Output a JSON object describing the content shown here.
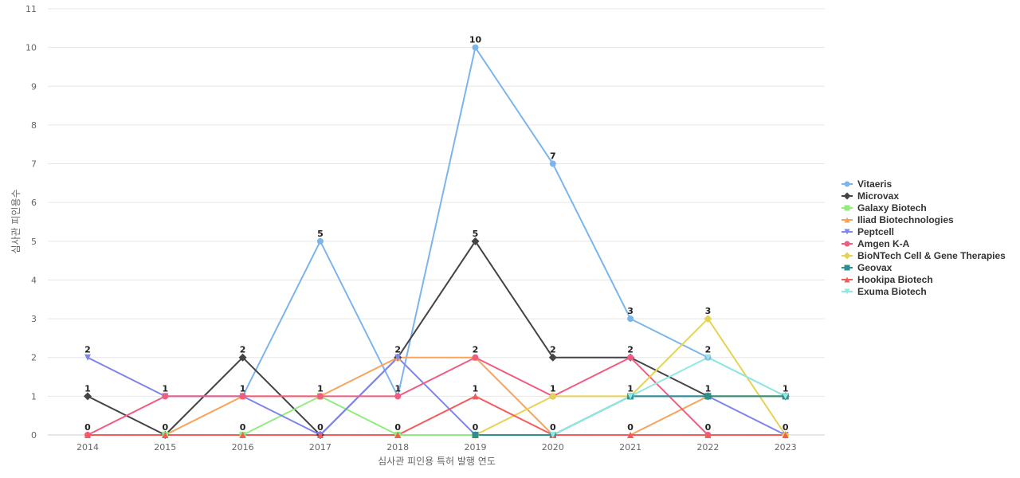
{
  "chart_data": {
    "type": "line",
    "xlabel": "심사관 피인용 특허 발행 연도",
    "ylabel": "심사관 피인용수",
    "ylim": [
      0,
      11
    ],
    "yticks": [
      0,
      1,
      2,
      3,
      4,
      5,
      6,
      7,
      8,
      9,
      10,
      11
    ],
    "x": [
      "2014",
      "2015",
      "2016",
      "2017",
      "2018",
      "2019",
      "2020",
      "2021",
      "2022",
      "2023"
    ],
    "grid": true,
    "legend_position": "right",
    "series": [
      {
        "name": "Vitaeris",
        "color": "#7cb5ec",
        "marker": "circle",
        "values": [
          null,
          1,
          1,
          5,
          1,
          10,
          7,
          3,
          2,
          1
        ]
      },
      {
        "name": "Microvax",
        "color": "#434348",
        "marker": "diamond",
        "values": [
          1,
          0,
          2,
          0,
          2,
          5,
          2,
          2,
          1,
          1
        ]
      },
      {
        "name": "Galaxy Biotech",
        "color": "#90ed7d",
        "marker": "square",
        "values": [
          null,
          0,
          0,
          1,
          0,
          0,
          0,
          1,
          1,
          1
        ]
      },
      {
        "name": "Iliad Biotechnologies",
        "color": "#f7a35c",
        "marker": "triangle",
        "values": [
          null,
          0,
          1,
          1,
          2,
          2,
          0,
          0,
          1,
          1
        ]
      },
      {
        "name": "Peptcell",
        "color": "#8085e9",
        "marker": "triangle-down",
        "values": [
          2,
          1,
          1,
          0,
          2,
          0,
          0,
          1,
          1,
          0
        ]
      },
      {
        "name": "Amgen K-A",
        "color": "#f15c80",
        "marker": "circle",
        "values": [
          0,
          1,
          1,
          1,
          1,
          2,
          1,
          2,
          0,
          0
        ]
      },
      {
        "name": "BioNTech Cell & Gene Therapies",
        "color": "#e4d354",
        "marker": "diamond",
        "values": [
          null,
          null,
          null,
          null,
          null,
          0,
          1,
          1,
          3,
          0
        ]
      },
      {
        "name": "Geovax",
        "color": "#2b908f",
        "marker": "square",
        "values": [
          null,
          null,
          null,
          null,
          null,
          0,
          0,
          1,
          1,
          1
        ]
      },
      {
        "name": "Hookipa Biotech",
        "color": "#f45b5b",
        "marker": "triangle",
        "values": [
          0,
          0,
          0,
          0,
          0,
          1,
          0,
          0,
          0,
          0
        ]
      },
      {
        "name": "Exuma Biotech",
        "color": "#91e8e1",
        "marker": "triangle-down",
        "values": [
          null,
          null,
          null,
          null,
          null,
          null,
          0,
          1,
          2,
          1
        ]
      }
    ],
    "data_labels": [
      {
        "x": "2014",
        "values": [
          "2",
          "1",
          "0"
        ]
      },
      {
        "x": "2015",
        "values": [
          "1",
          "0"
        ]
      },
      {
        "x": "2016",
        "values": [
          "2",
          "1",
          "0"
        ]
      },
      {
        "x": "2017",
        "values": [
          "5",
          "1",
          "0"
        ]
      },
      {
        "x": "2018",
        "values": [
          "2",
          "1",
          "0"
        ]
      },
      {
        "x": "2019",
        "values": [
          "10",
          "5",
          "2",
          "1",
          "0"
        ]
      },
      {
        "x": "2020",
        "values": [
          "7",
          "2",
          "1",
          "0"
        ]
      },
      {
        "x": "2021",
        "values": [
          "3",
          "2",
          "1",
          "0"
        ]
      },
      {
        "x": "2022",
        "values": [
          "3",
          "2",
          "1",
          "0"
        ]
      },
      {
        "x": "2023",
        "values": [
          "1",
          "0"
        ]
      }
    ]
  }
}
